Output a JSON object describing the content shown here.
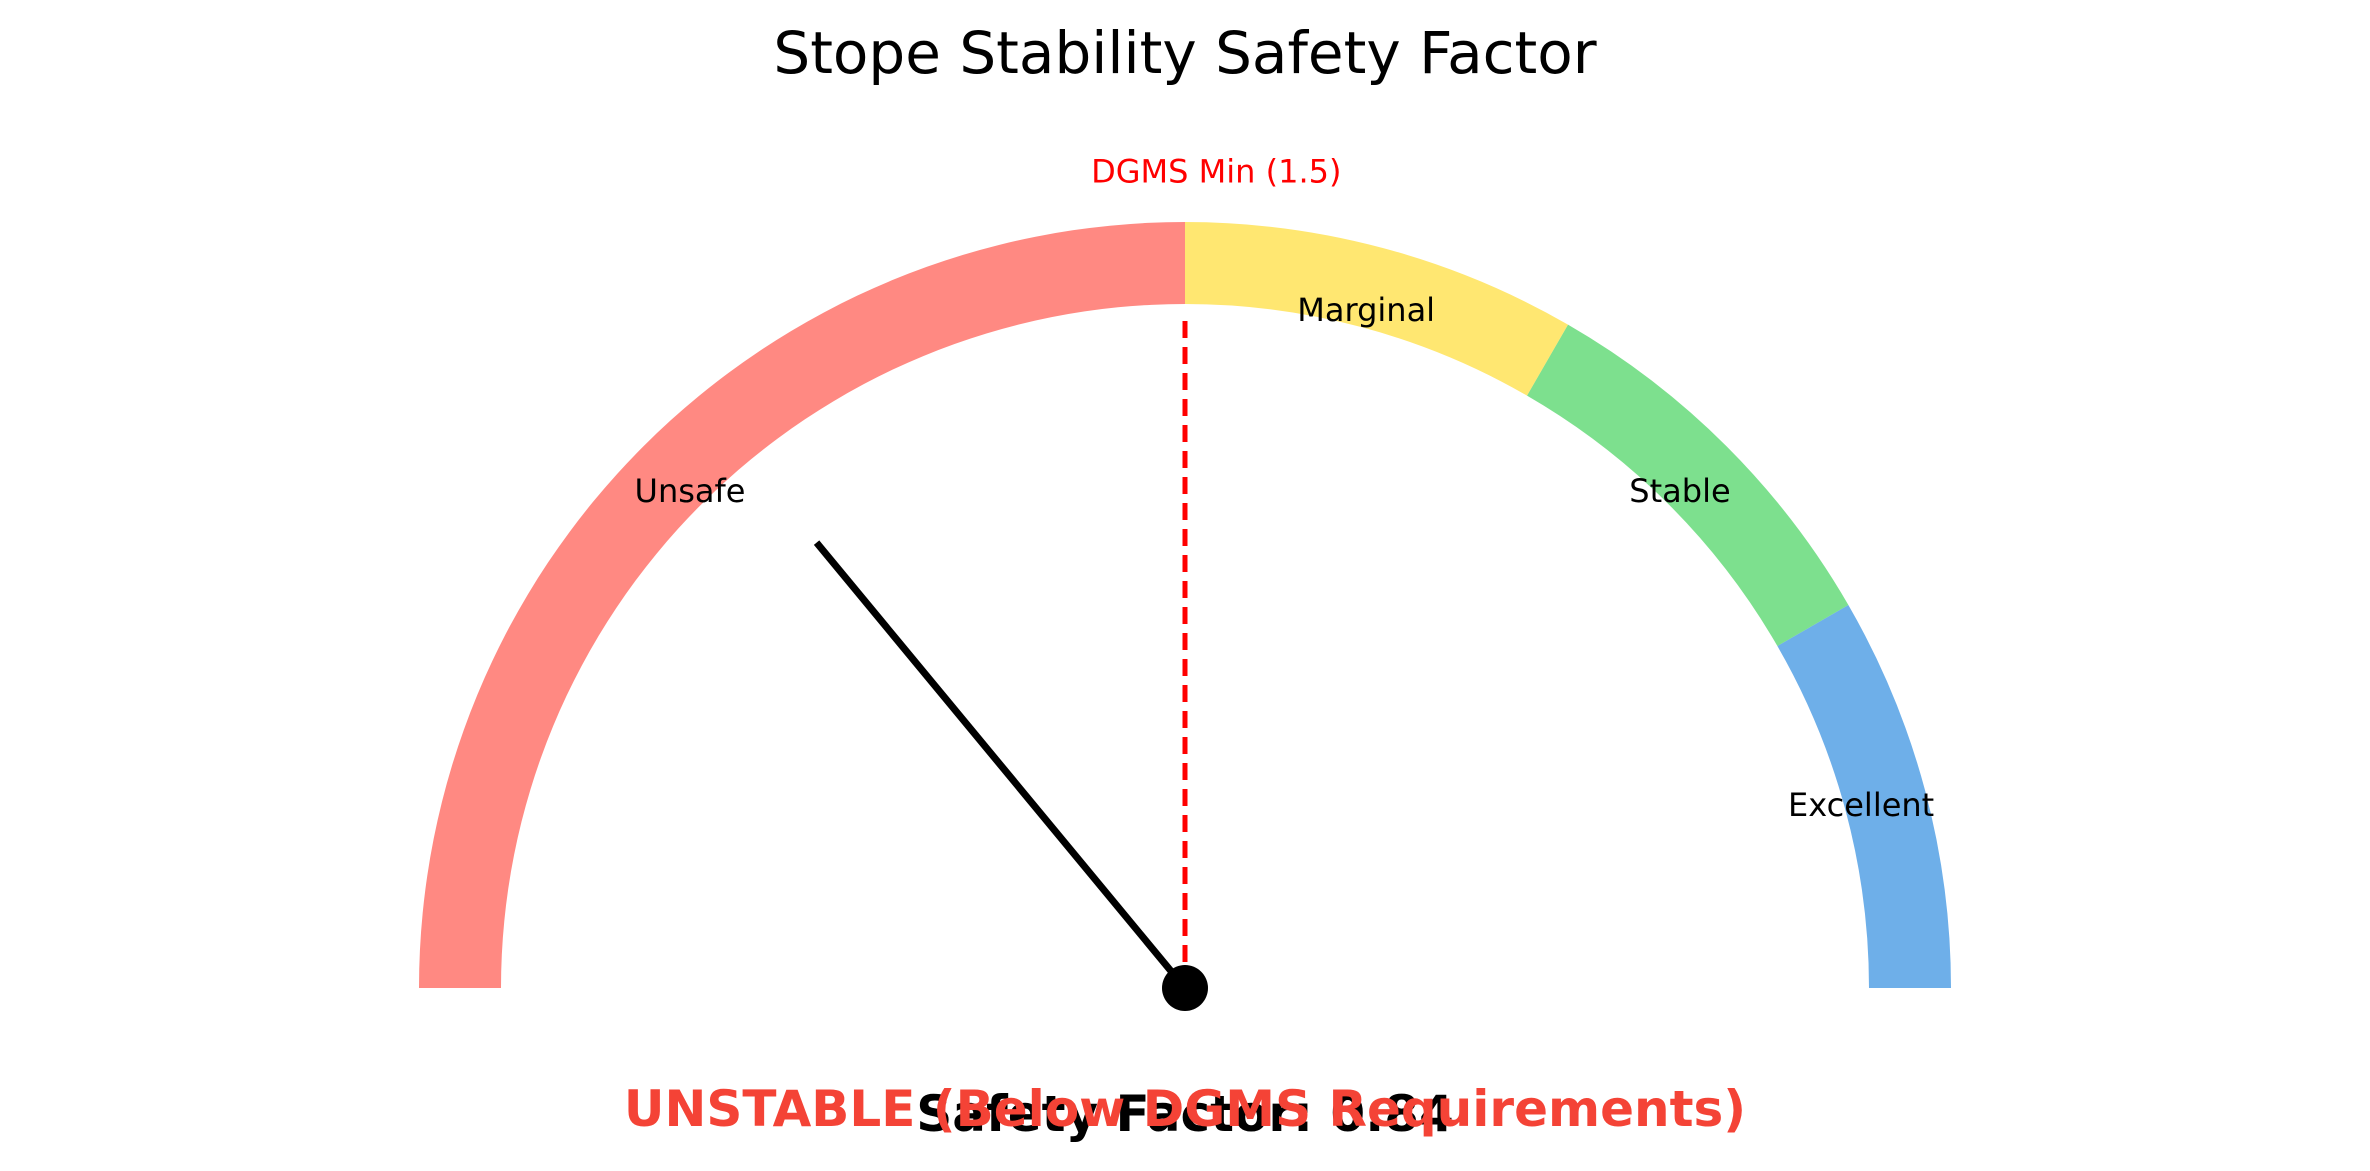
{
  "chart_data": {
    "type": "gauge",
    "title": "Stope Stability Safety Factor",
    "value": 0.84,
    "value_text": "Safety Factor: 0.84",
    "status_text": "UNSTABLE (Below DGMS Requirements)",
    "status_color": "#f44336",
    "threshold": {
      "label": "DGMS Min (1.5)",
      "value": 1.5,
      "color": "#ff0000"
    },
    "zones": [
      {
        "label": "Excellent",
        "from": 2.5,
        "to": 3.0,
        "color": "#4a9be3"
      },
      {
        "label": "Stable",
        "from": 2.0,
        "to": 2.5,
        "color": "#5dd872"
      },
      {
        "label": "Marginal",
        "from": 1.5,
        "to": 2.0,
        "color": "#ffe14d"
      },
      {
        "label": "Unsafe",
        "from": 0.0,
        "to": 1.5,
        "color": "#ff6b63"
      }
    ],
    "scale_min": 0.0,
    "scale_max": 3.0,
    "zone_opacity": 0.8,
    "needle_color": "#000000"
  }
}
